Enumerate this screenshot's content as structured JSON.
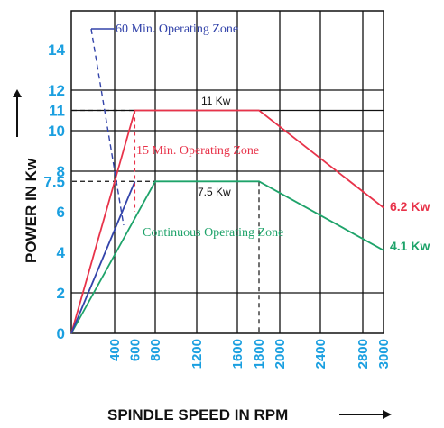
{
  "colors": {
    "continuous": "#1ea36a",
    "fifteen_min": "#e8334a",
    "sixty_min": "#3344aa",
    "ticks": "#1a9fe0",
    "grid": "#111111"
  },
  "chart_data": {
    "type": "line",
    "xlabel": "SPINDLE SPEED  IN RPM",
    "ylabel": "POWER IN  Kw",
    "xlim": [
      0,
      3000
    ],
    "ylim": [
      0,
      16
    ],
    "x_ticks": [
      "400",
      "600",
      "800",
      "1200",
      "1600",
      "1800",
      "2000",
      "2400",
      "2800",
      "3000"
    ],
    "y_ticks": [
      "0",
      "2",
      "4",
      "6",
      "7.5",
      "8",
      "10",
      "11",
      "12",
      "14"
    ],
    "zone_labels": {
      "sixty_min": "60 Min. Operating Zone",
      "fifteen_min": "15 Min. Operating Zone",
      "continuous": "Continuous Operating Zone"
    },
    "value_labels": {
      "fifteen_peak": "11 Kw",
      "continuous_peak": "7.5 Kw",
      "fifteen_end": "6.2 Kw",
      "continuous_end": "4.1 Kw"
    },
    "series": [
      {
        "key": "continuous",
        "points": [
          [
            0,
            0
          ],
          [
            800,
            7.5
          ],
          [
            1800,
            7.5
          ],
          [
            3000,
            4.1
          ]
        ]
      },
      {
        "key": "fifteen_min",
        "points": [
          [
            0,
            0
          ],
          [
            600,
            11
          ],
          [
            1800,
            11
          ],
          [
            3000,
            6.2
          ]
        ]
      },
      {
        "key": "sixty_min",
        "points": [
          [
            0,
            0
          ],
          [
            600,
            7.5
          ]
        ]
      }
    ]
  }
}
